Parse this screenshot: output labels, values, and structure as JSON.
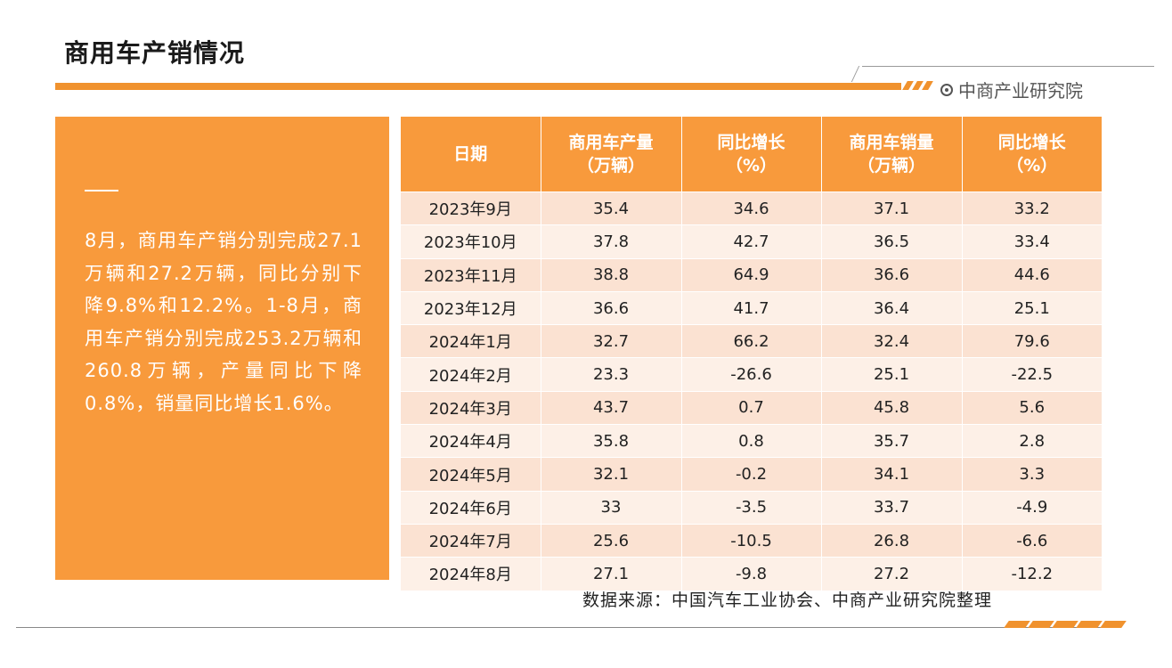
{
  "title": "商用车产销情况",
  "brand": "中商产业研究院",
  "summary": "8月，商用车产销分别完成27.1万辆和27.2万辆，同比分别下降9.8%和12.2%。1-8月，商用车产销分别完成253.2万辆和260.8万辆，产量同比下降0.8%，销量同比增长1.6%。",
  "table": {
    "headers": [
      "日期",
      "商用车产量\n（万辆）",
      "同比增长\n（%）",
      "商用车销量\n（万辆）",
      "同比增长\n（%）"
    ],
    "rows": [
      [
        "2023年9月",
        "35.4",
        "34.6",
        "37.1",
        "33.2"
      ],
      [
        "2023年10月",
        "37.8",
        "42.7",
        "36.5",
        "33.4"
      ],
      [
        "2023年11月",
        "38.8",
        "64.9",
        "36.6",
        "44.6"
      ],
      [
        "2023年12月",
        "36.6",
        "41.7",
        "36.4",
        "25.1"
      ],
      [
        "2024年1月",
        "32.7",
        "66.2",
        "32.4",
        "79.6"
      ],
      [
        "2024年2月",
        "23.3",
        "-26.6",
        "25.1",
        "-22.5"
      ],
      [
        "2024年3月",
        "43.7",
        "0.7",
        "45.8",
        "5.6"
      ],
      [
        "2024年4月",
        "35.8",
        "0.8",
        "35.7",
        "2.8"
      ],
      [
        "2024年5月",
        "32.1",
        "-0.2",
        "34.1",
        "3.3"
      ],
      [
        "2024年6月",
        "33",
        "-3.5",
        "33.7",
        "-4.9"
      ],
      [
        "2024年7月",
        "25.6",
        "-10.5",
        "26.8",
        "-6.6"
      ],
      [
        "2024年8月",
        "27.1",
        "-9.8",
        "27.2",
        "-12.2"
      ]
    ]
  },
  "source": "数据来源：中国汽车工业协会、中商产业研究院整理",
  "colors": {
    "accent": "#f89a3c",
    "row_odd": "#fbe2d2",
    "row_even": "#fdf0e7"
  }
}
